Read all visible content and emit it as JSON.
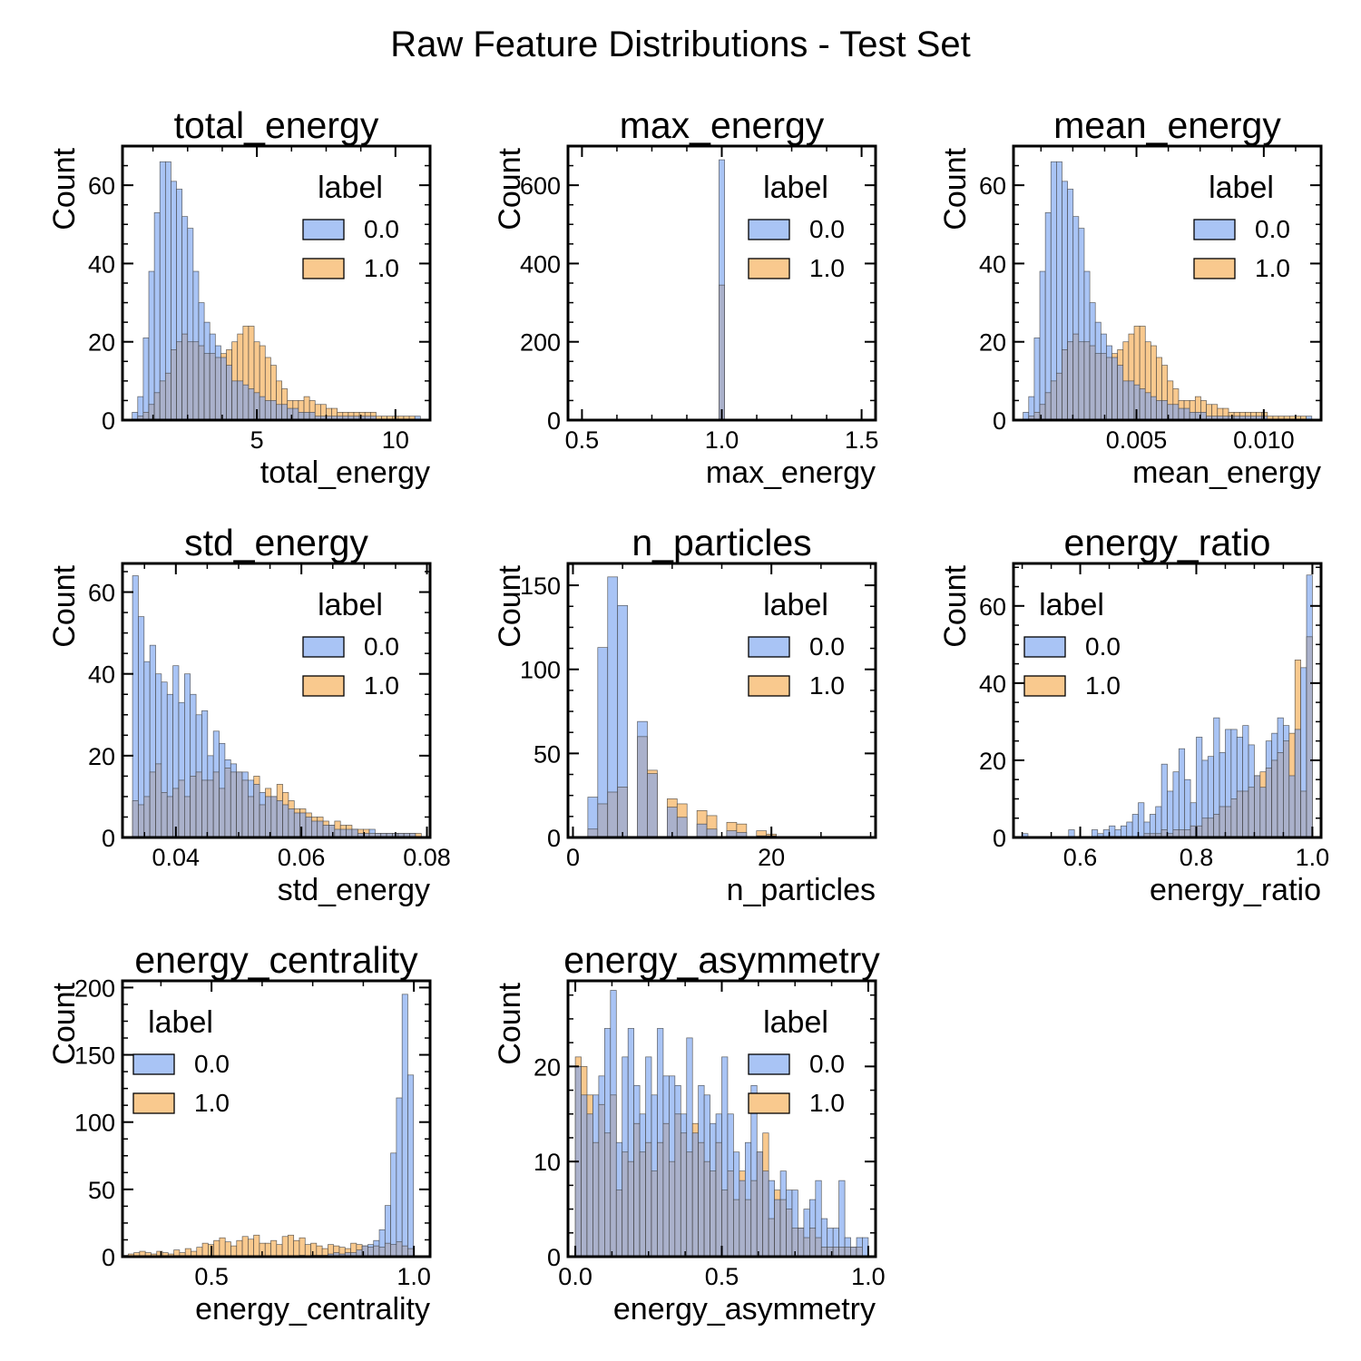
{
  "title": "Raw Feature Distributions - Test Set",
  "colors": {
    "class0": "#a9c4f5",
    "class1": "#f9c98e",
    "overlap": "#aab1cb",
    "edge": "#3d3d3d"
  },
  "chart_data": [
    {
      "type": "histogram",
      "title": "total_energy",
      "xlabel": "total_energy",
      "ylabel": "Count",
      "xlim": [
        0.15,
        11.25
      ],
      "ylim": [
        0,
        70
      ],
      "xticks": [
        5,
        10
      ],
      "xtick_labels": [
        "5",
        "10"
      ],
      "yticks": [
        0,
        20,
        40,
        60
      ],
      "ytick_labels": [
        "0",
        "20",
        "40",
        "60"
      ],
      "legend": {
        "title": "label",
        "placement": "top-right",
        "entries": [
          "0.0",
          "1.0"
        ]
      },
      "bin_start": 0.5,
      "bin_width": 0.2,
      "bins": 52,
      "series": [
        {
          "name": "0.0",
          "values": [
            2,
            6,
            21,
            38,
            53,
            66,
            66,
            61,
            59,
            52,
            49,
            38,
            30,
            25,
            22,
            19,
            16,
            14,
            10,
            10,
            9,
            8,
            7,
            6,
            5,
            5,
            4,
            4,
            3,
            3,
            2,
            2,
            2,
            1,
            1,
            1,
            1,
            1,
            1,
            1,
            1,
            1,
            1,
            1,
            0,
            0,
            0,
            0,
            0,
            0,
            0,
            1
          ]
        },
        {
          "name": "1.0",
          "values": [
            0,
            1,
            2,
            4,
            7,
            10,
            12,
            18,
            20,
            22,
            20,
            20,
            19,
            17,
            17,
            16,
            17,
            18,
            20,
            22,
            24,
            24,
            20,
            19,
            16,
            14,
            10,
            8,
            5,
            5,
            5,
            6,
            5,
            4,
            4,
            3,
            3,
            2,
            2,
            2,
            2,
            2,
            2,
            2,
            1,
            1,
            1,
            1,
            1,
            1,
            1,
            0
          ]
        }
      ]
    },
    {
      "type": "histogram",
      "title": "max_energy",
      "xlabel": "max_energy",
      "ylabel": "Count",
      "xlim": [
        0.45,
        1.55
      ],
      "ylim": [
        0,
        700
      ],
      "xticks": [
        0.5,
        1.0,
        1.5
      ],
      "xtick_labels": [
        "0.5",
        "1.0",
        "1.5"
      ],
      "yticks": [
        0,
        200,
        400,
        600
      ],
      "ytick_labels": [
        "0",
        "200",
        "400",
        "600"
      ],
      "legend": {
        "title": "label",
        "placement": "top-right",
        "entries": [
          "0.0",
          "1.0"
        ]
      },
      "bin_start": 0.99,
      "bin_width": 0.02,
      "bins": 1,
      "series": [
        {
          "name": "0.0",
          "values": [
            665
          ]
        },
        {
          "name": "1.0",
          "values": [
            345
          ]
        }
      ]
    },
    {
      "type": "histogram",
      "title": "mean_energy",
      "xlabel": "mean_energy",
      "ylabel": "Count",
      "xlim": [
        0.00017,
        0.01225
      ],
      "ylim": [
        0,
        70
      ],
      "xticks": [
        0.005,
        0.01
      ],
      "xtick_labels": [
        "0.005",
        "0.010"
      ],
      "yticks": [
        0,
        20,
        40,
        60
      ],
      "ytick_labels": [
        "0",
        "20",
        "40",
        "60"
      ],
      "legend": {
        "title": "label",
        "placement": "top-right",
        "entries": [
          "0.0",
          "1.0"
        ]
      },
      "bin_start": 0.00055,
      "bin_width": 0.000218,
      "bins": 52,
      "series": [
        {
          "name": "0.0",
          "values": [
            2,
            6,
            21,
            38,
            53,
            66,
            66,
            61,
            59,
            52,
            49,
            38,
            30,
            25,
            22,
            19,
            16,
            14,
            10,
            10,
            9,
            8,
            7,
            6,
            5,
            5,
            4,
            4,
            3,
            3,
            2,
            2,
            2,
            1,
            1,
            1,
            1,
            1,
            1,
            1,
            1,
            1,
            1,
            1,
            0,
            0,
            0,
            0,
            0,
            0,
            0,
            1
          ]
        },
        {
          "name": "1.0",
          "values": [
            0,
            1,
            2,
            4,
            7,
            10,
            12,
            18,
            20,
            22,
            20,
            20,
            19,
            17,
            17,
            16,
            17,
            18,
            20,
            22,
            24,
            24,
            20,
            19,
            16,
            14,
            10,
            8,
            5,
            5,
            5,
            6,
            5,
            4,
            4,
            3,
            3,
            2,
            2,
            2,
            2,
            2,
            2,
            2,
            1,
            1,
            1,
            1,
            1,
            1,
            1,
            0
          ]
        }
      ]
    },
    {
      "type": "histogram",
      "title": "std_energy",
      "xlabel": "std_energy",
      "ylabel": "Count",
      "xlim": [
        0.0315,
        0.0805
      ],
      "ylim": [
        0,
        67
      ],
      "xticks": [
        0.04,
        0.06,
        0.08
      ],
      "xtick_labels": [
        "0.04",
        "0.06",
        "0.08"
      ],
      "yticks": [
        0,
        20,
        40,
        60
      ],
      "ytick_labels": [
        "0",
        "20",
        "40",
        "60"
      ],
      "legend": {
        "title": "label",
        "placement": "top-right",
        "entries": [
          "0.0",
          "1.0"
        ]
      },
      "bin_start": 0.0331,
      "bin_width": 0.00092,
      "bins": 50,
      "series": [
        {
          "name": "0.0",
          "values": [
            64,
            54,
            43,
            47,
            40,
            38,
            35,
            42,
            33,
            40,
            35,
            30,
            31,
            20,
            26,
            23,
            19,
            18,
            16,
            16,
            14,
            13,
            11,
            10,
            10,
            9,
            8,
            7,
            6,
            6,
            5,
            4,
            4,
            3,
            3,
            2,
            2,
            2,
            2,
            1,
            1,
            2,
            1,
            1,
            1,
            1,
            1,
            1,
            1,
            0
          ]
        },
        {
          "name": "1.0",
          "values": [
            9,
            8,
            10,
            16,
            18,
            11,
            10,
            12,
            14,
            10,
            15,
            16,
            14,
            14,
            16,
            12,
            17,
            16,
            16,
            14,
            10,
            15,
            8,
            12,
            10,
            13,
            11,
            9,
            7,
            7,
            6,
            5,
            5,
            4,
            3,
            4,
            3,
            3,
            2,
            2,
            2,
            1,
            1,
            1,
            1,
            1,
            1,
            1,
            1,
            1
          ]
        }
      ]
    },
    {
      "type": "histogram",
      "title": "n_particles",
      "xlabel": "n_particles",
      "ylabel": "Count",
      "xlim": [
        -0.5,
        30.5
      ],
      "ylim": [
        0,
        163
      ],
      "xticks": [
        0,
        20
      ],
      "xtick_labels": [
        "0",
        "20"
      ],
      "yticks": [
        0,
        50,
        100,
        150
      ],
      "ytick_labels": [
        "0",
        "50",
        "100",
        "150"
      ],
      "legend": {
        "title": "label",
        "placement": "top-right",
        "entries": [
          "0.0",
          "1.0"
        ]
      },
      "bin_start": 0.5,
      "bin_width": 1.0,
      "bins": 30,
      "series": [
        {
          "name": "0.0",
          "values": [
            0,
            24,
            113,
            155,
            138,
            0,
            69,
            38,
            0,
            18,
            12,
            0,
            8,
            5,
            0,
            4,
            3,
            0,
            1,
            1,
            0,
            0,
            0,
            0,
            0,
            0,
            0,
            0,
            0,
            0
          ]
        },
        {
          "name": "1.0",
          "values": [
            0,
            5,
            20,
            27,
            30,
            0,
            60,
            40,
            0,
            23,
            20,
            0,
            16,
            13,
            0,
            9,
            8,
            0,
            4,
            2,
            0,
            0,
            0,
            0,
            0,
            0,
            0,
            0,
            0,
            0
          ]
        }
      ]
    },
    {
      "type": "histogram",
      "title": "energy_ratio",
      "xlabel": "energy_ratio",
      "ylabel": "Count",
      "xlim": [
        0.485,
        1.015
      ],
      "ylim": [
        0,
        71
      ],
      "xticks": [
        0.6,
        0.8,
        1.0
      ],
      "xtick_labels": [
        "0.6",
        "0.8",
        "1.0"
      ],
      "legend": {
        "title": "label",
        "placement": "top-left",
        "entries": [
          "0.0",
          "1.0"
        ]
      },
      "yticks": [
        0,
        20,
        40,
        60
      ],
      "ytick_labels": [
        "0",
        "20",
        "40",
        "60"
      ],
      "bin_start": 0.5,
      "bin_width": 0.01,
      "bins": 50,
      "series": [
        {
          "name": "0.0",
          "values": [
            1,
            0,
            0,
            0,
            0,
            0,
            0,
            0,
            2,
            0,
            0,
            0,
            2,
            1,
            2,
            3,
            2,
            3,
            4,
            6,
            9,
            4,
            6,
            8,
            19,
            12,
            17,
            23,
            15,
            9,
            26,
            20,
            21,
            31,
            22,
            28,
            28,
            26,
            29,
            24,
            16,
            13,
            25,
            27,
            31,
            29,
            16,
            28,
            44,
            68
          ]
        },
        {
          "name": "1.0",
          "values": [
            0,
            0,
            0,
            0,
            0,
            0,
            0,
            0,
            0,
            0,
            0,
            0,
            0,
            0,
            0,
            0,
            0,
            0,
            0,
            0,
            0,
            1,
            1,
            1,
            2,
            1,
            2,
            2,
            2,
            3,
            3,
            5,
            5,
            6,
            8,
            8,
            10,
            12,
            12,
            13,
            16,
            17,
            18,
            20,
            22,
            25,
            27,
            46,
            12,
            52
          ]
        }
      ]
    },
    {
      "type": "histogram",
      "title": "energy_centrality",
      "xlabel": "energy_centrality",
      "ylabel": "Count",
      "xlim": [
        0.28,
        1.04
      ],
      "ylim": [
        0,
        205
      ],
      "xticks": [
        0.5,
        1.0
      ],
      "xtick_labels": [
        "0.5",
        "1.0"
      ],
      "yticks": [
        0,
        50,
        100,
        150,
        200
      ],
      "ytick_labels": [
        "0",
        "50",
        "100",
        "150",
        "200"
      ],
      "legend": {
        "title": "label",
        "placement": "top-left",
        "entries": [
          "0.0",
          "1.0"
        ]
      },
      "bin_start": 0.28,
      "bin_width": 0.0141,
      "bins": 51,
      "series": [
        {
          "name": "0.0",
          "values": [
            0,
            0,
            0,
            0,
            0,
            0,
            0,
            0,
            0,
            0,
            0,
            0,
            0,
            0,
            0,
            0,
            0,
            0,
            0,
            0,
            0,
            0,
            0,
            0,
            0,
            0,
            0,
            0,
            0,
            0,
            0,
            1,
            0,
            1,
            1,
            1,
            2,
            3,
            2,
            3,
            3,
            5,
            8,
            9,
            12,
            20,
            38,
            77,
            118,
            195,
            135
          ]
        },
        {
          "name": "1.0",
          "values": [
            1,
            2,
            3,
            4,
            3,
            2,
            4,
            3,
            2,
            5,
            3,
            6,
            4,
            7,
            10,
            9,
            12,
            14,
            11,
            8,
            12,
            15,
            13,
            16,
            10,
            10,
            12,
            9,
            15,
            16,
            12,
            14,
            9,
            10,
            8,
            6,
            9,
            8,
            7,
            6,
            10,
            9,
            8,
            7,
            8,
            7,
            10,
            9,
            11,
            8,
            6
          ]
        }
      ]
    },
    {
      "type": "histogram",
      "title": "energy_asymmetry",
      "xlabel": "energy_asymmetry",
      "ylabel": "Count",
      "xlim": [
        -0.025,
        1.025
      ],
      "ylim": [
        0,
        29
      ],
      "xticks": [
        0.0,
        0.5,
        1.0
      ],
      "xtick_labels": [
        "0.0",
        "0.5",
        "1.0"
      ],
      "yticks": [
        0,
        10,
        20
      ],
      "ytick_labels": [
        "0",
        "10",
        "20"
      ],
      "legend": {
        "title": "label",
        "placement": "top-right",
        "entries": [
          "0.0",
          "1.0"
        ]
      },
      "bin_start": 0.0,
      "bin_width": 0.02,
      "bins": 50,
      "series": [
        {
          "name": "0.0",
          "values": [
            20,
            17,
            15,
            17,
            19,
            24,
            28,
            12,
            21,
            24,
            18,
            15,
            21,
            17,
            24,
            19,
            19,
            18,
            15,
            23,
            13,
            18,
            17,
            14,
            15,
            21,
            15,
            11,
            8,
            12,
            18,
            11,
            9,
            8,
            6,
            9,
            7,
            7,
            3,
            5,
            6,
            8,
            4,
            3,
            3,
            8,
            2,
            1,
            2,
            2
          ]
        },
        {
          "name": "1.0",
          "values": [
            21,
            20,
            17,
            12,
            16,
            13,
            17,
            7,
            11,
            10,
            14,
            11,
            12,
            9,
            12,
            14,
            10,
            15,
            13,
            11,
            14,
            12,
            10,
            9,
            12,
            7,
            9,
            6,
            9,
            6,
            8,
            11,
            13,
            4,
            7,
            6,
            5,
            3,
            3,
            2,
            3,
            2,
            1,
            1,
            1,
            1,
            1,
            1,
            1,
            0
          ]
        }
      ]
    }
  ]
}
